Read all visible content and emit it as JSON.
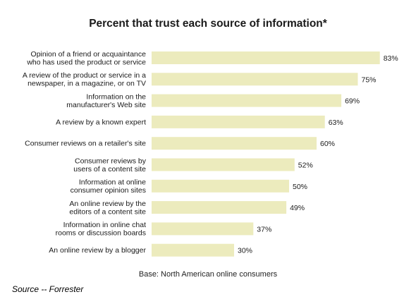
{
  "chart_data": {
    "type": "bar",
    "orientation": "horizontal",
    "title": "Percent that trust each source of information*",
    "categories": [
      [
        "Opinion of a friend or acquaintance",
        "who has used the product or service"
      ],
      [
        "A review of the product or service in a",
        "newspaper, in a magazine, or on TV"
      ],
      [
        "Information on the",
        "manufacturer's Web site"
      ],
      [
        "A review by a known expert"
      ],
      [
        "Consumer reviews on a retailer's site"
      ],
      [
        "Consumer reviews by",
        "users of a content site"
      ],
      [
        "Information at online",
        "consumer opinion sites"
      ],
      [
        "An online review by the",
        "editors of a content site"
      ],
      [
        "Information in online chat",
        "rooms or discussion boards"
      ],
      [
        "An online review by a blogger"
      ]
    ],
    "values": [
      83,
      75,
      69,
      63,
      60,
      52,
      50,
      49,
      37,
      30
    ],
    "value_labels": [
      "83%",
      "75%",
      "69%",
      "63%",
      "60%",
      "52%",
      "50%",
      "49%",
      "37%",
      "30%"
    ],
    "xlim": [
      0,
      100
    ],
    "grid": false,
    "bar_color": "#ecebbd",
    "note": "Base: North American online consumers"
  },
  "source": "Source -- Forrester"
}
